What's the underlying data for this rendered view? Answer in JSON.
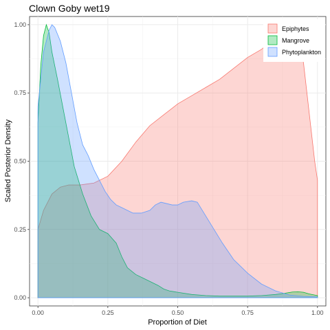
{
  "chart_data": {
    "type": "area",
    "title": "Clown Goby wet19",
    "xlabel": "Proportion of Diet",
    "ylabel": "Scaled Posterior Density",
    "xlim": [
      -0.03,
      1.03
    ],
    "ylim": [
      -0.03,
      1.03
    ],
    "x_ticks": [
      0.0,
      0.25,
      0.5,
      0.75,
      1.0
    ],
    "x_tick_labels": [
      "0.00",
      "0.25",
      "0.50",
      "0.75",
      "1.00"
    ],
    "y_ticks": [
      0.0,
      0.25,
      0.5,
      0.75,
      1.0
    ],
    "y_tick_labels": [
      "0.00",
      "0.25",
      "0.50",
      "0.75",
      "1.00"
    ],
    "grid": true,
    "legend_position": "top-right",
    "series": [
      {
        "name": "Epiphytes",
        "fill": "#F8766D",
        "points": [
          [
            0.0,
            0.25
          ],
          [
            0.02,
            0.32
          ],
          [
            0.05,
            0.38
          ],
          [
            0.08,
            0.405
          ],
          [
            0.11,
            0.413
          ],
          [
            0.15,
            0.413
          ],
          [
            0.2,
            0.42
          ],
          [
            0.25,
            0.445
          ],
          [
            0.3,
            0.5
          ],
          [
            0.35,
            0.57
          ],
          [
            0.4,
            0.63
          ],
          [
            0.45,
            0.67
          ],
          [
            0.5,
            0.71
          ],
          [
            0.55,
            0.74
          ],
          [
            0.6,
            0.77
          ],
          [
            0.65,
            0.8
          ],
          [
            0.7,
            0.84
          ],
          [
            0.75,
            0.88
          ],
          [
            0.8,
            0.91
          ],
          [
            0.85,
            0.95
          ],
          [
            0.88,
            0.99
          ],
          [
            0.9,
            1.0
          ],
          [
            0.93,
            0.96
          ],
          [
            0.95,
            0.86
          ],
          [
            0.97,
            0.68
          ],
          [
            0.99,
            0.5
          ],
          [
            1.0,
            0.43
          ]
        ]
      },
      {
        "name": "Mangrove",
        "fill": "#00BA38",
        "points": [
          [
            0.0,
            0.64
          ],
          [
            0.01,
            0.85
          ],
          [
            0.02,
            0.96
          ],
          [
            0.03,
            1.0
          ],
          [
            0.04,
            0.97
          ],
          [
            0.05,
            0.9
          ],
          [
            0.07,
            0.8
          ],
          [
            0.1,
            0.64
          ],
          [
            0.13,
            0.48
          ],
          [
            0.16,
            0.38
          ],
          [
            0.19,
            0.3
          ],
          [
            0.22,
            0.25
          ],
          [
            0.25,
            0.235
          ],
          [
            0.28,
            0.2
          ],
          [
            0.3,
            0.15
          ],
          [
            0.32,
            0.11
          ],
          [
            0.35,
            0.085
          ],
          [
            0.38,
            0.07
          ],
          [
            0.4,
            0.06
          ],
          [
            0.43,
            0.045
          ],
          [
            0.45,
            0.032
          ],
          [
            0.47,
            0.025
          ],
          [
            0.5,
            0.02
          ],
          [
            0.55,
            0.012
          ],
          [
            0.6,
            0.008
          ],
          [
            0.65,
            0.006
          ],
          [
            0.7,
            0.006
          ],
          [
            0.75,
            0.006
          ],
          [
            0.8,
            0.008
          ],
          [
            0.85,
            0.012
          ],
          [
            0.88,
            0.016
          ],
          [
            0.91,
            0.021
          ],
          [
            0.93,
            0.022
          ],
          [
            0.95,
            0.02
          ],
          [
            0.97,
            0.014
          ],
          [
            1.0,
            0.008
          ]
        ]
      },
      {
        "name": "Phytoplankton",
        "fill": "#619CFF",
        "points": [
          [
            0.0,
            0.7
          ],
          [
            0.02,
            0.9
          ],
          [
            0.04,
            0.98
          ],
          [
            0.05,
            1.0
          ],
          [
            0.06,
            0.99
          ],
          [
            0.08,
            0.94
          ],
          [
            0.1,
            0.86
          ],
          [
            0.12,
            0.75
          ],
          [
            0.14,
            0.64
          ],
          [
            0.16,
            0.56
          ],
          [
            0.18,
            0.52
          ],
          [
            0.2,
            0.47
          ],
          [
            0.22,
            0.43
          ],
          [
            0.24,
            0.39
          ],
          [
            0.26,
            0.36
          ],
          [
            0.28,
            0.34
          ],
          [
            0.3,
            0.33
          ],
          [
            0.32,
            0.32
          ],
          [
            0.34,
            0.31
          ],
          [
            0.37,
            0.31
          ],
          [
            0.4,
            0.32
          ],
          [
            0.42,
            0.34
          ],
          [
            0.44,
            0.35
          ],
          [
            0.46,
            0.345
          ],
          [
            0.48,
            0.34
          ],
          [
            0.5,
            0.34
          ],
          [
            0.52,
            0.35
          ],
          [
            0.55,
            0.355
          ],
          [
            0.57,
            0.35
          ],
          [
            0.6,
            0.3
          ],
          [
            0.63,
            0.25
          ],
          [
            0.66,
            0.2
          ],
          [
            0.7,
            0.14
          ],
          [
            0.75,
            0.09
          ],
          [
            0.8,
            0.05
          ],
          [
            0.85,
            0.025
          ],
          [
            0.9,
            0.01
          ],
          [
            0.95,
            0.005
          ],
          [
            1.0,
            0.003
          ]
        ]
      }
    ]
  }
}
